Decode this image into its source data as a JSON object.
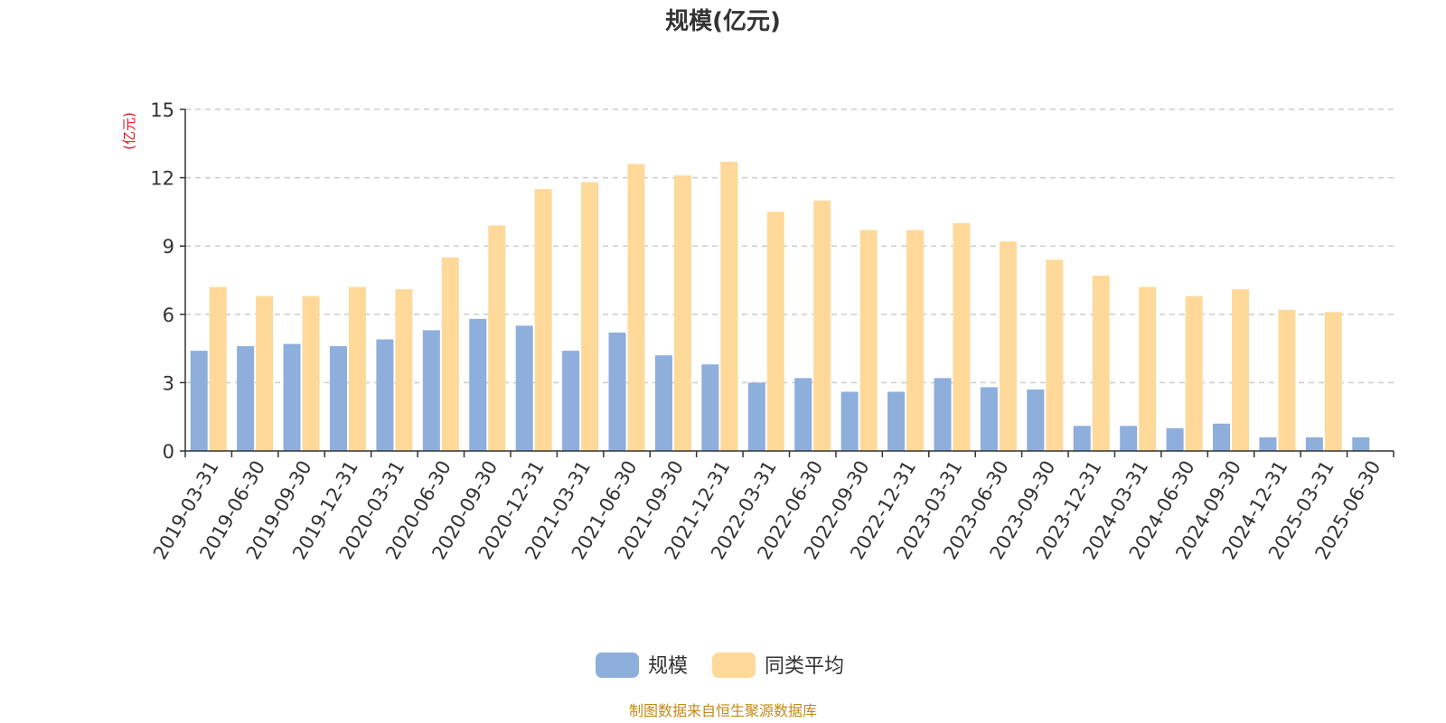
{
  "colors": {
    "series_scale": "#8eaedc",
    "series_avg": "#ffd99a",
    "unit_label": "#e0151b",
    "source_text": "#c28a17",
    "grid": "#cccccc",
    "axis": "#333333"
  },
  "chart_data": {
    "type": "bar",
    "title": "规模(亿元)",
    "ylabel": "(亿元)",
    "xlabel": "",
    "ylim": [
      0,
      15
    ],
    "yticks": [
      0,
      3,
      6,
      9,
      12,
      15
    ],
    "grid": true,
    "grid_style": "dashed horizontal",
    "legend_position": "bottom-center",
    "categories": [
      "2019-03-31",
      "2019-06-30",
      "2019-09-30",
      "2019-12-31",
      "2020-03-31",
      "2020-06-30",
      "2020-09-30",
      "2020-12-31",
      "2021-03-31",
      "2021-06-30",
      "2021-09-30",
      "2021-12-31",
      "2022-03-31",
      "2022-06-30",
      "2022-09-30",
      "2022-12-31",
      "2023-03-31",
      "2023-06-30",
      "2023-09-30",
      "2023-12-31",
      "2024-03-31",
      "2024-06-30",
      "2024-09-30",
      "2024-12-31",
      "2025-03-31",
      "2025-06-30"
    ],
    "series": [
      {
        "name": "规模",
        "values": [
          4.4,
          4.6,
          4.7,
          4.6,
          4.9,
          5.3,
          5.8,
          5.5,
          4.4,
          5.2,
          4.2,
          3.8,
          3.0,
          3.2,
          2.6,
          2.6,
          3.2,
          2.8,
          2.7,
          1.1,
          1.1,
          1.0,
          1.2,
          0.6,
          0.6,
          0.6
        ]
      },
      {
        "name": "同类平均",
        "values": [
          7.2,
          6.8,
          6.8,
          7.2,
          7.1,
          8.5,
          9.9,
          11.5,
          11.8,
          12.6,
          12.1,
          12.7,
          10.5,
          11.0,
          9.7,
          9.7,
          10.0,
          9.2,
          8.4,
          7.7,
          7.2,
          6.8,
          7.1,
          6.2,
          6.1,
          null
        ]
      }
    ]
  },
  "legend": {
    "items": [
      {
        "label": "规模"
      },
      {
        "label": "同类平均"
      }
    ]
  },
  "footer": {
    "source": "制图数据来自恒生聚源数据库"
  }
}
